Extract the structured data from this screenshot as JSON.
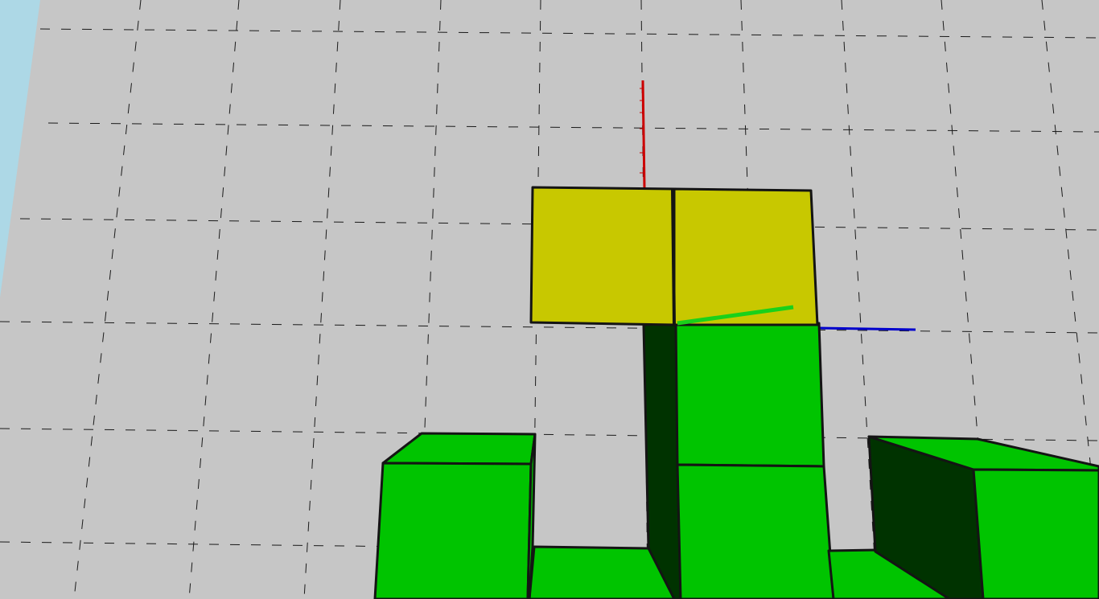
{
  "scene": {
    "colors": {
      "background": "#c6c6c6",
      "sky": "#add8e6",
      "grid_line": "#1a1a1a",
      "block_green": "#00c400",
      "block_green_shadow": "#003300",
      "block_yellow": "#c8c800",
      "block_edge": "#141414",
      "axis_red": "#cc0000",
      "axis_green": "#1ad11a",
      "axis_blue": "#0000cc"
    },
    "blocks": {
      "count": 9,
      "highlighted": "yellow",
      "names": [
        "left-block",
        "center-low-block",
        "tower-bottom-block",
        "tower-middle-block",
        "tower-shadow-face",
        "highlighted-block",
        "right-block",
        "right-floor-block",
        "right-shadow-face"
      ]
    },
    "axes": [
      "x",
      "y",
      "z"
    ]
  }
}
